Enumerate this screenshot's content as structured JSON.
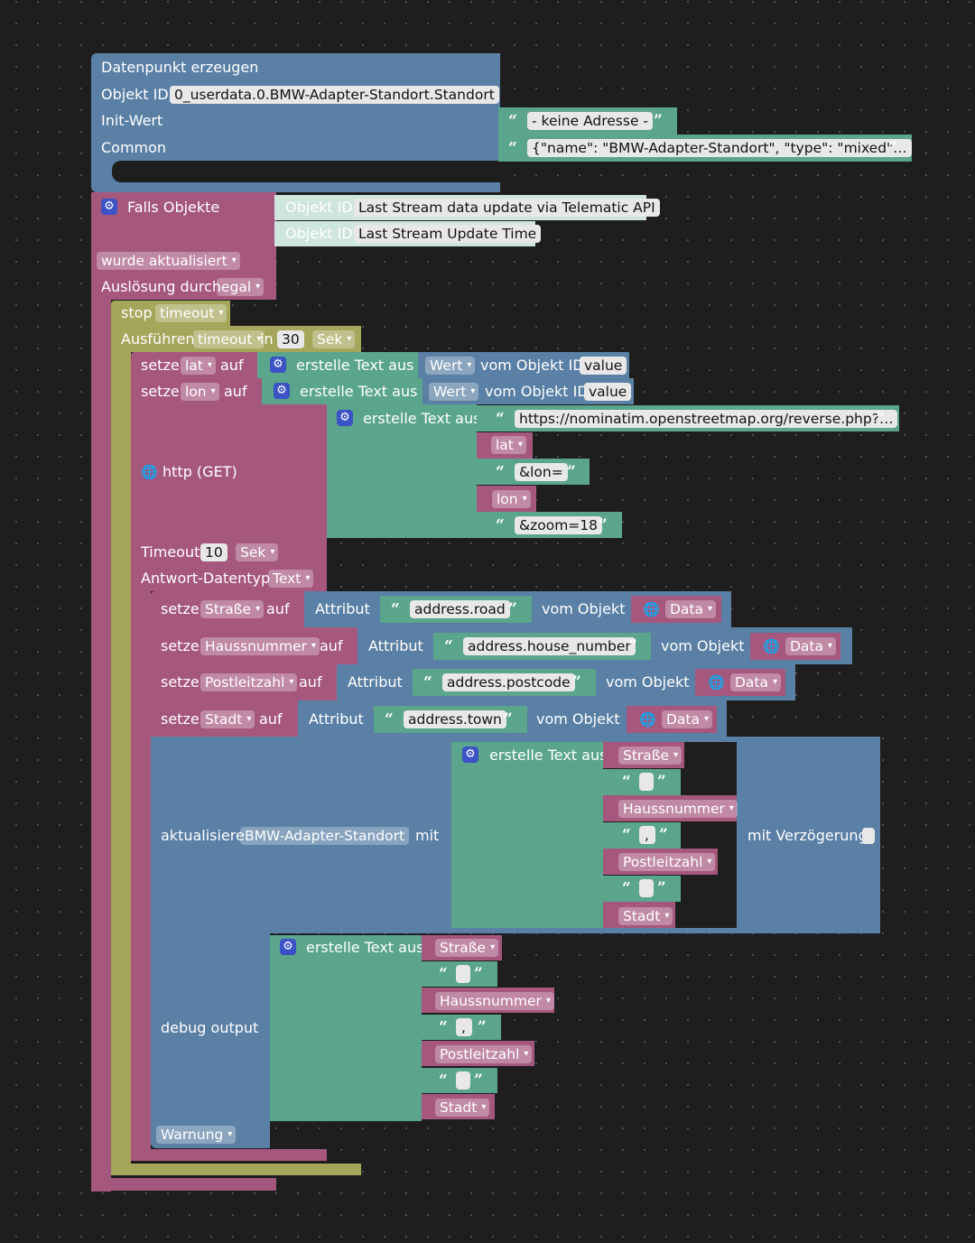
{
  "create": {
    "title": "Datenpunkt erzeugen",
    "objekt_id_label": "Objekt ID",
    "objekt_id_value": "0_userdata.0.BMW-Adapter-Standort.Standort",
    "init_label": "Init-Wert",
    "init_value": "- keine Adresse -",
    "common_label": "Common",
    "common_value": "{\"name\": \"BMW-Adapter-Standort\", \"type\": \"mixed\"…"
  },
  "trigger": {
    "title": "Falls Objekte",
    "objekt_id_label": "Objekt ID",
    "objects": [
      "Last Stream data update via Telematic API",
      "Last Stream Update Time"
    ],
    "condition": "wurde aktualisiert",
    "ausloesung_label": "Auslösung durch",
    "ausloesung_value": "egal"
  },
  "stop": {
    "label": "stop",
    "timeout": "timeout"
  },
  "run": {
    "label": "Ausführen",
    "timeout": "timeout",
    "in": "in",
    "value": "30",
    "unit": "Sek"
  },
  "setze_lat": {
    "setze": "setze",
    "var": "lat",
    "auf": "auf",
    "text": "erstelle Text aus",
    "wert": "Wert",
    "vom": "vom Objekt ID",
    "value": "value"
  },
  "setze_lon": {
    "setze": "setze",
    "var": "lon",
    "auf": "auf",
    "text": "erstelle Text aus",
    "wert": "Wert",
    "vom": "vom Objekt ID",
    "value": "value"
  },
  "http": {
    "label": "http (GET)",
    "text": "erstelle Text aus",
    "url": "https://nominatim.openstreetmap.org/reverse.php?…",
    "lat": "lat",
    "lon_param": "&lon=",
    "lon": "lon",
    "zoom": "&zoom=18",
    "timeout_label": "Timeout",
    "timeout_value": "10",
    "timeout_unit": "Sek",
    "type_label": "Antwort-Datentyp",
    "type_value": "Text"
  },
  "assign": [
    {
      "setze": "setze",
      "var": "Straße",
      "auf": "auf",
      "attr": "Attribut",
      "path": "address.road",
      "vom": "vom Objekt",
      "obj": "Data"
    },
    {
      "setze": "setze",
      "var": "Haussnummer",
      "auf": "auf",
      "attr": "Attribut",
      "path": "address.house_number",
      "vom": "vom Objekt",
      "obj": "Data"
    },
    {
      "setze": "setze",
      "var": "Postleitzahl",
      "auf": "auf",
      "attr": "Attribut",
      "path": "address.postcode",
      "vom": "vom Objekt",
      "obj": "Data"
    },
    {
      "setze": "setze",
      "var": "Stadt",
      "auf": "auf",
      "attr": "Attribut",
      "path": "address.town",
      "vom": "vom Objekt",
      "obj": "Data"
    }
  ],
  "update": {
    "label": "aktualisiere",
    "target": "BMW-Adapter-Standort",
    "mit": "mit",
    "text": "erstelle Text aus",
    "items": [
      "Straße",
      "",
      "Haussnummer",
      ",",
      "Postleitzahl",
      "",
      "Stadt"
    ],
    "delay": "mit Verzögerung"
  },
  "debug": {
    "label": "debug output",
    "text": "erstelle Text aus",
    "items": [
      "Straße",
      "",
      "Haussnummer",
      ",",
      "Postleitzahl",
      "",
      "Stadt"
    ],
    "level": "Warnung"
  },
  "colors": {
    "blue": "#5b80a5",
    "pink": "#a5577e",
    "green": "#5ba58c",
    "olive": "#a5a55b",
    "background": "#1e1e1e"
  }
}
